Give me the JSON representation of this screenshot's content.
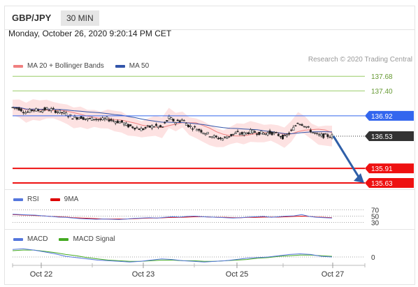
{
  "header": {
    "symbol": "GBP/JPY",
    "timeframe": "30 MIN"
  },
  "datetime": "Monday, October 26, 2020 9:20:14 PM CET",
  "legend": {
    "ma20_bb": "MA 20 + Bollinger Bands",
    "ma20_color": "#f08080",
    "ma50": "MA 50",
    "ma50_color": "#3355aa",
    "credit": "Research © 2020 Trading Central"
  },
  "rsi_legend": {
    "rsi": "RSI",
    "rsi_color": "#5577dd",
    "ma9": "9MA",
    "ma9_color": "#dd0000"
  },
  "macd_legend": {
    "macd": "MACD",
    "macd_color": "#5577dd",
    "signal": "MACD Signal",
    "signal_color": "#44aa22"
  },
  "chart_data": [
    {
      "type": "candlestick",
      "title": "GBP/JPY 30 MIN",
      "x_ticks": [
        "Oct 22",
        "Oct 23",
        "Oct 25",
        "Oct 27"
      ],
      "ylim": [
        135.55,
        137.75
      ],
      "close_path": [
        137.08,
        137.06,
        136.98,
        137.04,
        137.02,
        137.05,
        137.03,
        136.99,
        136.95,
        136.88,
        136.9,
        136.85,
        136.87,
        136.84,
        136.86,
        136.82,
        136.8,
        136.73,
        136.7,
        136.66,
        136.7,
        136.73,
        136.69,
        136.88,
        136.8,
        136.85,
        136.72,
        136.68,
        136.62,
        136.55,
        136.5,
        136.48,
        136.54,
        136.59,
        136.57,
        136.62,
        136.6,
        136.58,
        136.6,
        136.56,
        136.5,
        136.62,
        136.8,
        136.74,
        136.62,
        136.54,
        136.54,
        136.53
      ],
      "levels": [
        {
          "value": 137.68,
          "label": "137.68",
          "color": "#99cc66",
          "kind": "target"
        },
        {
          "value": 137.4,
          "label": "137.40",
          "color": "#99cc66",
          "kind": "target"
        },
        {
          "value": 136.92,
          "label": "136.92",
          "color": "#3366ee",
          "kind": "pivot"
        },
        {
          "value": 136.53,
          "label": "136.53",
          "color": "#333333",
          "kind": "last"
        },
        {
          "value": 135.91,
          "label": "135.91",
          "color": "#ee1111",
          "kind": "support"
        },
        {
          "value": 135.63,
          "label": "135.63",
          "color": "#ee1111",
          "kind": "support"
        }
      ]
    },
    {
      "type": "line",
      "title": "RSI",
      "levels": [
        {
          "value": 70,
          "label": "70"
        },
        {
          "value": 50,
          "label": "50"
        },
        {
          "value": 30,
          "label": "30"
        }
      ],
      "ylim": [
        20,
        80
      ],
      "rsi": [
        56,
        55,
        54,
        53,
        51,
        49,
        47,
        46,
        44,
        42,
        41,
        40,
        41,
        40,
        39,
        41,
        43,
        44,
        45,
        44,
        46,
        48,
        47,
        49,
        50,
        48,
        47,
        46,
        45,
        44,
        45,
        47,
        48,
        49,
        46,
        48,
        50,
        51,
        55,
        49,
        46,
        45,
        44
      ],
      "ma9": [
        55,
        54,
        53,
        52,
        51,
        49,
        48,
        47,
        45,
        44,
        43,
        42,
        41,
        41,
        41,
        41,
        42,
        43,
        44,
        44,
        45,
        46,
        46,
        47,
        48,
        48,
        47,
        46,
        46,
        45,
        45,
        46,
        46,
        47,
        47,
        47,
        48,
        49,
        50,
        49,
        47,
        46,
        45
      ]
    },
    {
      "type": "line",
      "title": "MACD",
      "levels": [
        {
          "value": 0,
          "label": "0"
        }
      ],
      "ylim": [
        -0.2,
        0.2
      ],
      "macd": [
        0.12,
        0.13,
        0.11,
        0.08,
        0.05,
        0.01,
        -0.01,
        -0.03,
        -0.05,
        -0.06,
        -0.07,
        -0.08,
        -0.07,
        -0.05,
        -0.03,
        -0.04,
        -0.06,
        -0.07,
        -0.08,
        -0.07,
        -0.06,
        -0.04,
        -0.02,
        -0.01,
        0.0,
        0.02,
        0.04,
        0.05,
        0.04,
        0.01,
        0.0
      ],
      "signal": [
        0.1,
        0.11,
        0.11,
        0.09,
        0.07,
        0.04,
        0.02,
        -0.01,
        -0.03,
        -0.05,
        -0.06,
        -0.07,
        -0.07,
        -0.06,
        -0.05,
        -0.05,
        -0.06,
        -0.06,
        -0.07,
        -0.07,
        -0.06,
        -0.05,
        -0.04,
        -0.02,
        -0.01,
        0.01,
        0.02,
        0.03,
        0.03,
        0.02,
        0.01
      ]
    }
  ]
}
